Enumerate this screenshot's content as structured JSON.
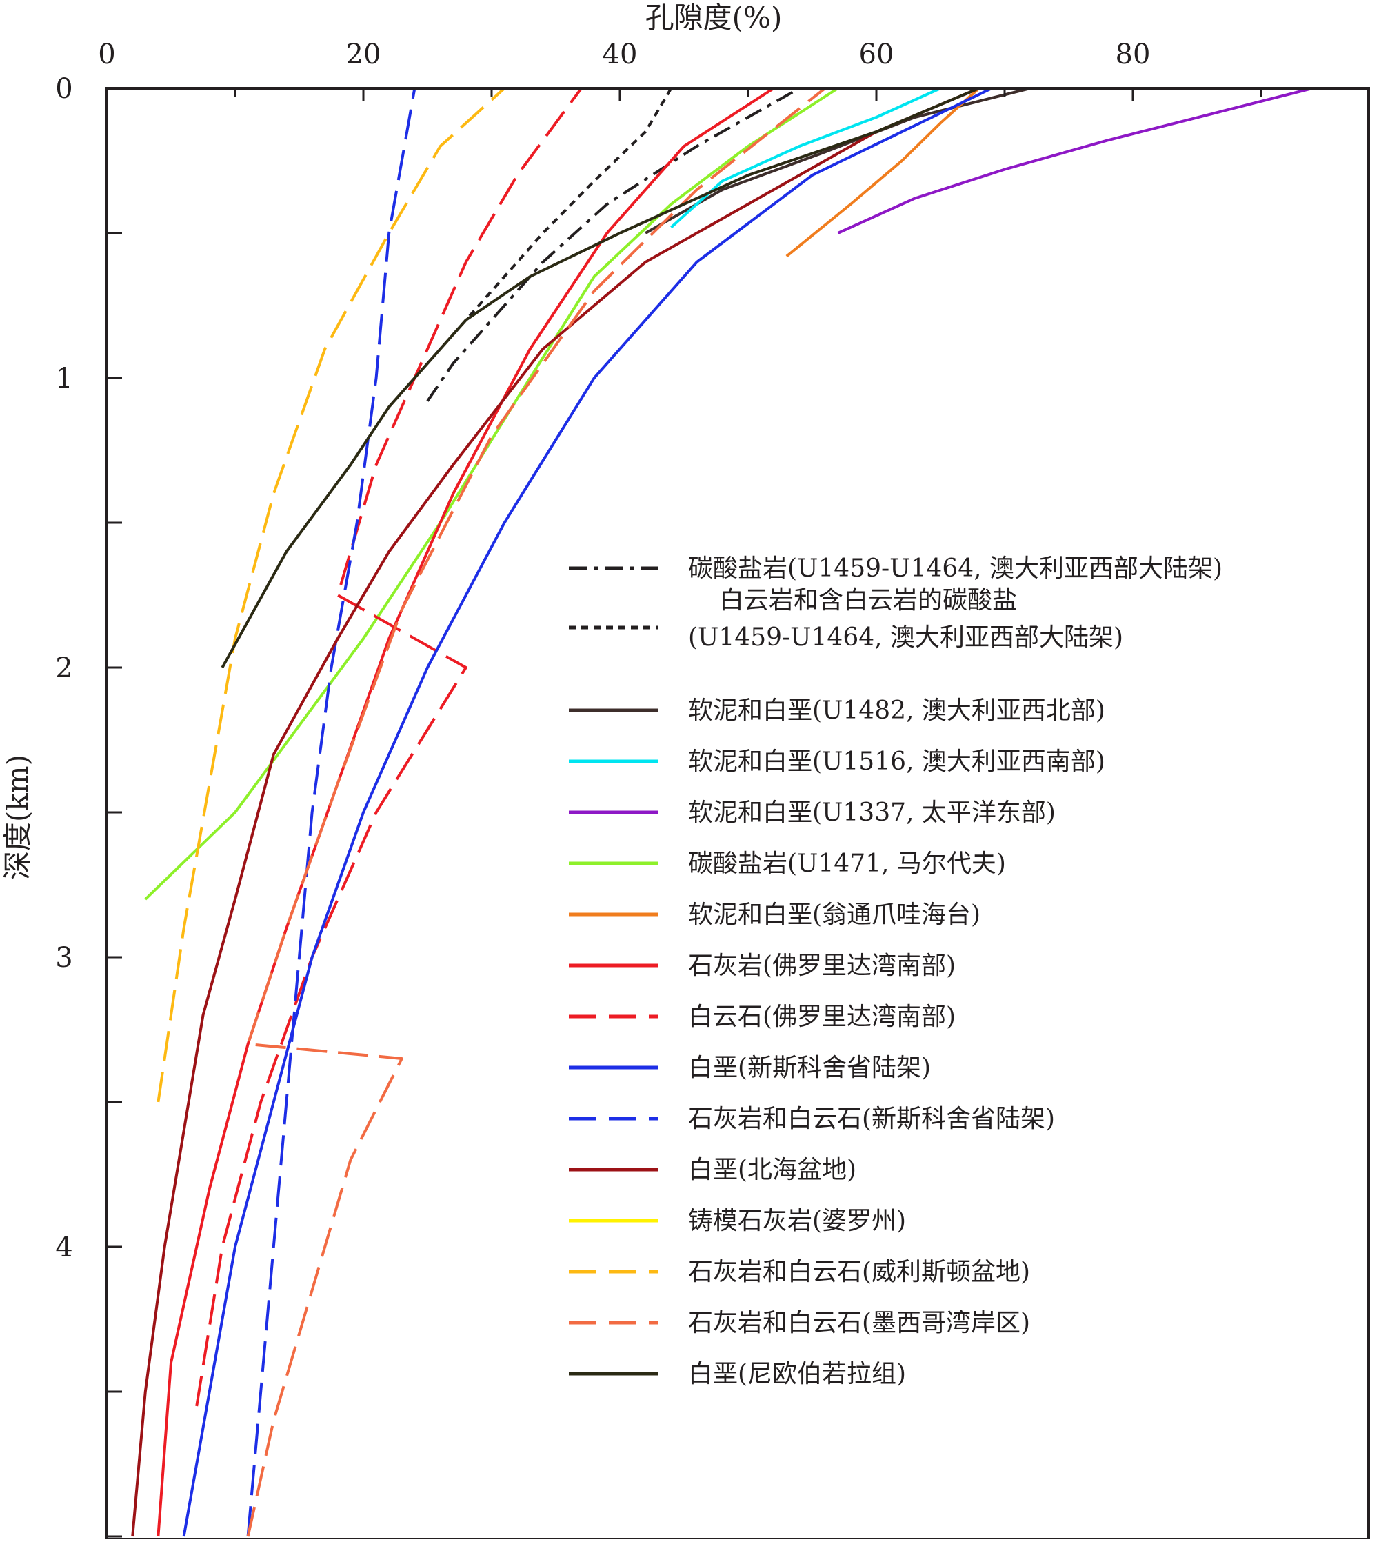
{
  "chart_data": {
    "type": "line",
    "xlabel": "孔隙度(%)",
    "ylabel": "深度(km)",
    "xlim": [
      0,
      95
    ],
    "ylim": [
      0,
      5
    ],
    "x_axis_position": "top",
    "y_inverted": true,
    "xticks": [
      "0",
      "20",
      "40",
      "60",
      "80"
    ],
    "yticks": [
      "0",
      "1",
      "2",
      "3",
      "4"
    ],
    "legend_position": "bottom-right",
    "series": [
      {
        "name": "碳酸盐岩(U1459-U1464, 澳大利亚西部大陆架)",
        "legend": [
          "碳酸盐岩(U1459-U1464, 澳大利亚西部大陆架)"
        ],
        "color": "#231f20",
        "dash": "dashdot",
        "width": 4,
        "points": [
          [
            25,
            1.08
          ],
          [
            27,
            0.95
          ],
          [
            30,
            0.8
          ],
          [
            34,
            0.6
          ],
          [
            39,
            0.4
          ],
          [
            46,
            0.2
          ],
          [
            54,
            0.0
          ]
        ]
      },
      {
        "name": "白云岩和含白云岩的碳酸盐(U1459-U1464, 澳大利亚西部大陆架)",
        "legend": [
          "白云岩和含白云岩的碳酸盐",
          "(U1459-U1464, 澳大利亚西部大陆架)"
        ],
        "color": "#231f20",
        "dash": "dotted",
        "width": 4,
        "points": [
          [
            27,
            0.85
          ],
          [
            30,
            0.7
          ],
          [
            34,
            0.5
          ],
          [
            38,
            0.32
          ],
          [
            42,
            0.15
          ],
          [
            44,
            0.0
          ]
        ]
      },
      {
        "name": "软泥和白垩(U1482, 澳大利亚西北部)",
        "legend": [
          "软泥和白垩(U1482, 澳大利亚西北部)"
        ],
        "color": "#3d2e2b",
        "dash": "solid",
        "width": 4,
        "points": [
          [
            42,
            0.5
          ],
          [
            48,
            0.35
          ],
          [
            56,
            0.22
          ],
          [
            63,
            0.1
          ],
          [
            72,
            0.0
          ]
        ]
      },
      {
        "name": "软泥和白垩(U1516, 澳大利亚西南部)",
        "legend": [
          "软泥和白垩(U1516, 澳大利亚西南部)"
        ],
        "color": "#00e5f0",
        "dash": "solid",
        "width": 4,
        "points": [
          [
            44,
            0.48
          ],
          [
            48,
            0.32
          ],
          [
            54,
            0.2
          ],
          [
            60,
            0.1
          ],
          [
            65,
            0.0
          ]
        ]
      },
      {
        "name": "软泥和白垩(U1337, 太平洋东部)",
        "legend": [
          "软泥和白垩(U1337, 太平洋东部)"
        ],
        "color": "#8e18c6",
        "dash": "solid",
        "width": 4,
        "points": [
          [
            57,
            0.5
          ],
          [
            63,
            0.38
          ],
          [
            70,
            0.28
          ],
          [
            78,
            0.18
          ],
          [
            86,
            0.09
          ],
          [
            94,
            0.0
          ]
        ]
      },
      {
        "name": "碳酸盐岩(U1471, 马尔代夫)",
        "legend": [
          "碳酸盐岩(U1471, 马尔代夫)"
        ],
        "color": "#8ef02a",
        "dash": "solid",
        "width": 4,
        "points": [
          [
            3,
            2.8
          ],
          [
            10,
            2.5
          ],
          [
            20,
            1.9
          ],
          [
            26,
            1.5
          ],
          [
            33,
            1.0
          ],
          [
            38,
            0.65
          ],
          [
            44,
            0.4
          ],
          [
            50,
            0.2
          ],
          [
            57,
            0.0
          ]
        ]
      },
      {
        "name": "软泥和白垩(翁通爪哇海台)",
        "legend": [
          "软泥和白垩(翁通爪哇海台)"
        ],
        "color": "#f07d1e",
        "dash": "solid",
        "width": 4,
        "points": [
          [
            53,
            0.58
          ],
          [
            58,
            0.4
          ],
          [
            62,
            0.25
          ],
          [
            65,
            0.12
          ],
          [
            68,
            0.0
          ]
        ]
      },
      {
        "name": "石灰岩(佛罗里达湾南部)",
        "legend": [
          "石灰岩(佛罗里达湾南部)"
        ],
        "color": "#ed1c24",
        "dash": "solid",
        "width": 4,
        "points": [
          [
            4,
            5.0
          ],
          [
            5,
            4.4
          ],
          [
            8,
            3.8
          ],
          [
            11,
            3.3
          ],
          [
            14,
            2.9
          ],
          [
            18,
            2.4
          ],
          [
            22,
            1.9
          ],
          [
            27,
            1.4
          ],
          [
            33,
            0.9
          ],
          [
            39,
            0.5
          ],
          [
            45,
            0.2
          ],
          [
            52,
            0.0
          ]
        ]
      },
      {
        "name": "白云石(佛罗里达湾南部)",
        "legend": [
          "白云石(佛罗里达湾南部)"
        ],
        "color": "#ed1c24",
        "dash": "dashed",
        "width": 4,
        "points": [
          [
            7,
            4.55
          ],
          [
            9,
            4.0
          ],
          [
            12,
            3.5
          ],
          [
            16,
            3.0
          ],
          [
            21,
            2.5
          ],
          [
            28,
            2.0
          ],
          [
            18,
            1.75
          ],
          [
            21,
            1.3
          ],
          [
            25,
            0.9
          ],
          [
            28,
            0.6
          ],
          [
            32,
            0.3
          ],
          [
            37,
            0.0
          ]
        ]
      },
      {
        "name": "白垩(新斯科舍省陆架)",
        "legend": [
          "白垩(新斯科舍省陆架)"
        ],
        "color": "#1d2ee6",
        "dash": "solid",
        "width": 4,
        "points": [
          [
            6,
            5.0
          ],
          [
            8,
            4.5
          ],
          [
            10,
            4.0
          ],
          [
            13,
            3.5
          ],
          [
            16,
            3.0
          ],
          [
            20,
            2.5
          ],
          [
            25,
            2.0
          ],
          [
            31,
            1.5
          ],
          [
            38,
            1.0
          ],
          [
            46,
            0.6
          ],
          [
            55,
            0.3
          ],
          [
            69,
            0.0
          ]
        ]
      },
      {
        "name": "石灰岩和白云石(新斯科舍省陆架)",
        "legend": [
          "石灰岩和白云石(新斯科舍省陆架)"
        ],
        "color": "#1d2ee6",
        "dash": "dashed",
        "width": 4,
        "points": [
          [
            11,
            5.0
          ],
          [
            12,
            4.5
          ],
          [
            13,
            4.0
          ],
          [
            14,
            3.5
          ],
          [
            15,
            3.0
          ],
          [
            16,
            2.5
          ],
          [
            17.5,
            2.0
          ],
          [
            19.5,
            1.5
          ],
          [
            21,
            1.0
          ],
          [
            22,
            0.5
          ],
          [
            24,
            0.0
          ]
        ]
      },
      {
        "name": "白垩(北海盆地)",
        "legend": [
          "白垩(北海盆地)"
        ],
        "color": "#9c1216",
        "dash": "solid",
        "width": 4,
        "points": [
          [
            2,
            5.0
          ],
          [
            3,
            4.5
          ],
          [
            4.5,
            4.0
          ],
          [
            6,
            3.6
          ],
          [
            7.5,
            3.2
          ],
          [
            10,
            2.8
          ],
          [
            13,
            2.3
          ],
          [
            18,
            1.9
          ],
          [
            22,
            1.6
          ],
          [
            27,
            1.3
          ],
          [
            34,
            0.9
          ],
          [
            42,
            0.6
          ],
          [
            52,
            0.35
          ],
          [
            60,
            0.15
          ],
          [
            68,
            0.0
          ]
        ]
      },
      {
        "name": "铸模石灰岩(婆罗州)",
        "legend": [
          "铸模石灰岩(婆罗州)"
        ],
        "color": "#fff200",
        "dash": "solid",
        "width": 4,
        "points": []
      },
      {
        "name": "石灰岩和白云石(威利斯顿盆地)",
        "legend": [
          "石灰岩和白云石(威利斯顿盆地)"
        ],
        "color": "#fdb913",
        "dash": "dashed",
        "width": 4,
        "points": [
          [
            4,
            3.5
          ],
          [
            6,
            2.9
          ],
          [
            8,
            2.4
          ],
          [
            10,
            1.9
          ],
          [
            13,
            1.4
          ],
          [
            17,
            0.9
          ],
          [
            22,
            0.5
          ],
          [
            26,
            0.2
          ],
          [
            31,
            0.0
          ]
        ]
      },
      {
        "name": "石灰岩和白云石(墨西哥湾岸区)",
        "legend": [
          "石灰岩和白云石(墨西哥湾岸区)"
        ],
        "color": "#f26b43",
        "dash": "dashed",
        "width": 4,
        "points": [
          [
            11,
            5.0
          ],
          [
            13,
            4.6
          ],
          [
            15,
            4.3
          ],
          [
            17,
            4.0
          ],
          [
            19,
            3.7
          ],
          [
            23,
            3.35
          ],
          [
            11,
            3.3
          ],
          [
            14,
            2.9
          ],
          [
            18,
            2.4
          ],
          [
            23,
            1.8
          ],
          [
            30,
            1.2
          ],
          [
            38,
            0.7
          ],
          [
            46,
            0.35
          ],
          [
            56,
            0.0
          ]
        ]
      },
      {
        "name": "白垩(尼欧伯若拉组)",
        "legend": [
          "白垩(尼欧伯若拉组)"
        ],
        "color": "#2b2a14",
        "dash": "solid",
        "width": 4,
        "points": [
          [
            9,
            2.0
          ],
          [
            14,
            1.6
          ],
          [
            19,
            1.3
          ],
          [
            22,
            1.1
          ],
          [
            25,
            0.95
          ],
          [
            28,
            0.8
          ],
          [
            33,
            0.65
          ],
          [
            40,
            0.5
          ],
          [
            50,
            0.3
          ],
          [
            60,
            0.15
          ],
          [
            68,
            0.0
          ]
        ]
      }
    ]
  }
}
